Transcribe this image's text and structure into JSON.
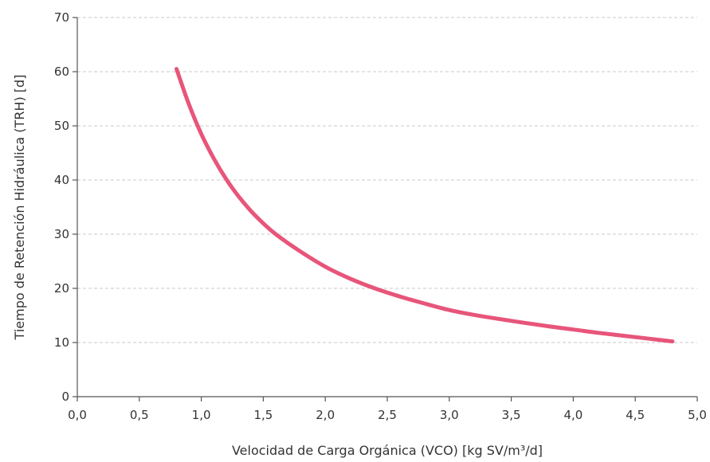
{
  "chart_data": {
    "type": "line",
    "title": "",
    "xlabel": "Velocidad de Carga Orgánica (VCO) [kg SV/m³/d]",
    "ylabel": "Tiempo de Retención Hidráulica (TRH) [d]",
    "xlim": [
      0,
      5
    ],
    "ylim": [
      0,
      70
    ],
    "x_ticks": [
      0,
      0.5,
      1.0,
      1.5,
      2.0,
      2.5,
      3.0,
      3.5,
      4.0,
      4.5,
      5.0
    ],
    "x_tick_labels": [
      "0,0",
      "0,5",
      "1,0",
      "1,5",
      "2,0",
      "2,5",
      "3,0",
      "3,5",
      "4,0",
      "4,5",
      "5,0"
    ],
    "y_ticks": [
      0,
      10,
      20,
      30,
      40,
      50,
      60,
      70
    ],
    "y_tick_labels": [
      "0",
      "10",
      "20",
      "30",
      "40",
      "50",
      "60",
      "70"
    ],
    "grid": "horizontal dashed",
    "series": [
      {
        "color": "#e8557a",
        "x": [
          0.8,
          0.9,
          1.0,
          1.1,
          1.2,
          1.3,
          1.4,
          1.5,
          1.6,
          1.8,
          2.0,
          2.2,
          2.4,
          2.6,
          2.8,
          3.0,
          3.2,
          3.5,
          3.8,
          4.0,
          4.2,
          4.5,
          4.8
        ],
        "y": [
          60.5,
          54,
          48.5,
          44,
          40.2,
          37,
          34.3,
          32,
          30,
          26.8,
          24,
          21.8,
          20,
          18.5,
          17.2,
          16,
          15.1,
          14,
          13,
          12.4,
          11.8,
          11,
          10.2
        ]
      }
    ]
  }
}
